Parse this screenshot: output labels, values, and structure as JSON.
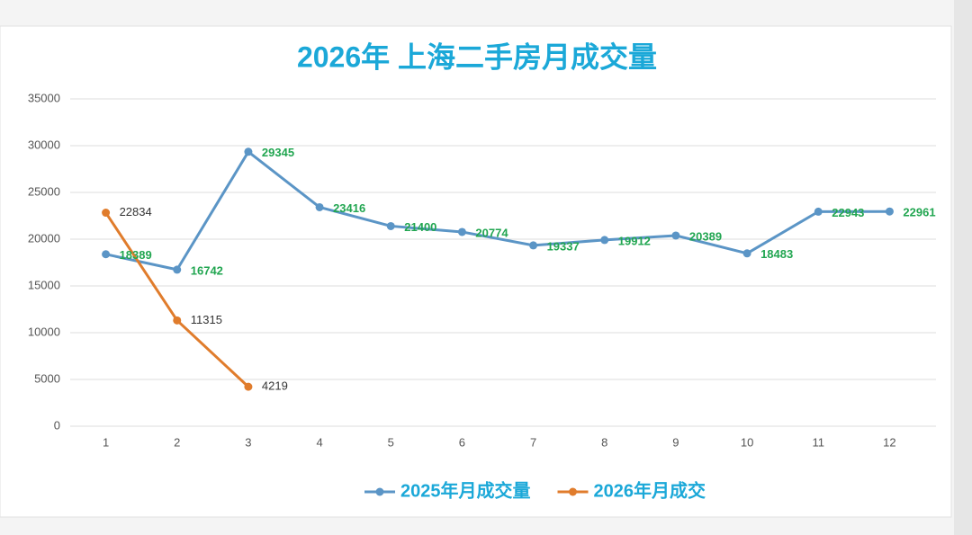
{
  "chart_data": {
    "type": "line",
    "title": "2026年 上海二手房月成交量",
    "categories": [
      "1",
      "2",
      "3",
      "4",
      "5",
      "6",
      "7",
      "8",
      "9",
      "10",
      "11",
      "12"
    ],
    "series": [
      {
        "name": "2025年月成交量",
        "color": "#5b95c6",
        "label_color": "#22a651",
        "values": [
          18389,
          16742,
          29345,
          23416,
          21400,
          20774,
          19337,
          19912,
          20389,
          18483,
          22943,
          22961
        ]
      },
      {
        "name": "2026年月成交",
        "color": "#e07c2c",
        "label_color": "#333333",
        "values": [
          22834,
          11315,
          4219,
          null,
          null,
          null,
          null,
          null,
          null,
          null,
          null,
          null
        ]
      }
    ],
    "ylim": [
      0,
      35000
    ],
    "yticks": [
      0,
      5000,
      10000,
      15000,
      20000,
      25000,
      30000,
      35000
    ],
    "grid": true,
    "legend": "bottom"
  }
}
